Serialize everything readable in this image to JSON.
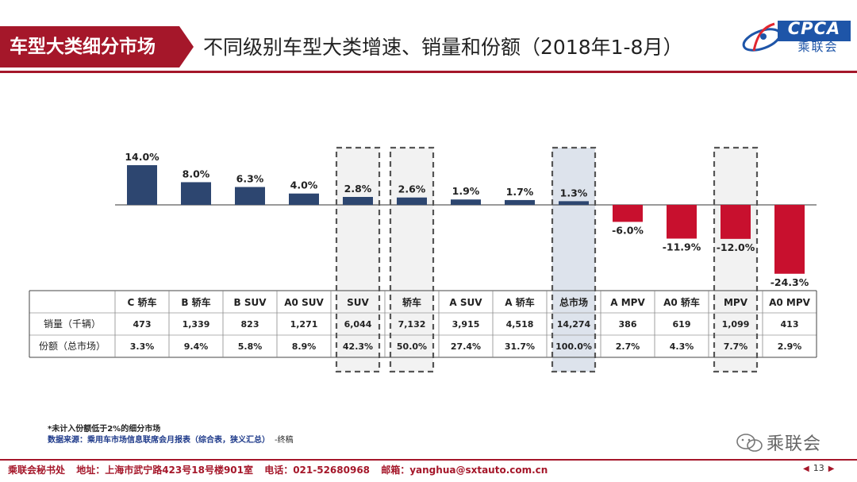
{
  "header": {
    "section_tag": "车型大类细分市场",
    "title": "不同级别车型大类增速、销量和份额（2018年1-8月）",
    "logo_text": "CPCA",
    "logo_subtext": "乘联会"
  },
  "chart_data": {
    "type": "bar",
    "categories": [
      "C 轿车",
      "B 轿车",
      "B SUV",
      "A0 SUV",
      "SUV",
      "轿车",
      "A SUV",
      "A 轿车",
      "总市场",
      "A MPV",
      "A0 轿车",
      "MPV",
      "A0 MPV"
    ],
    "values": [
      14.0,
      8.0,
      6.3,
      4.0,
      2.8,
      2.6,
      1.9,
      1.7,
      1.3,
      -6.0,
      -11.9,
      -12.0,
      -24.3
    ],
    "value_labels": [
      "14.0%",
      "8.0%",
      "6.3%",
      "4.0%",
      "2.8%",
      "2.6%",
      "1.9%",
      "1.7%",
      "1.3%",
      "-6.0%",
      "-11.9%",
      "-12.0%",
      "-24.3%"
    ],
    "highlighted": [
      "SUV",
      "轿车",
      "总市场",
      "MPV"
    ],
    "shaded": [
      "总市场"
    ],
    "colors": {
      "positive": "#2d4670",
      "negative": "#c8102e",
      "highlight_fill": "#f2f2f2",
      "shaded_fill": "#dde3ec"
    }
  },
  "table": {
    "rows": [
      {
        "label": "销量（千辆）",
        "values": [
          "473",
          "1,339",
          "823",
          "1,271",
          "6,044",
          "7,132",
          "3,915",
          "4,518",
          "14,274",
          "386",
          "619",
          "1,099",
          "413"
        ]
      },
      {
        "label": "份额（总市场）",
        "values": [
          "3.3%",
          "9.4%",
          "5.8%",
          "8.9%",
          "42.3%",
          "50.0%",
          "27.4%",
          "31.7%",
          "100.0%",
          "2.7%",
          "4.3%",
          "7.7%",
          "2.9%"
        ]
      }
    ]
  },
  "notes": {
    "note1": "*未计入份额低于2%的细分市场",
    "source": "数据来源：乘用车市场信息联席会月报表（综合表，狭义汇总）",
    "source_end": "-终稿"
  },
  "watermark": "乘联会",
  "footer": {
    "org": "乘联会秘书处",
    "address": "地址：上海市武宁路423号18号楼901室",
    "phone": "电话：021-52680968",
    "email": "邮箱：yanghua@sxtauto.com.cn",
    "page": "13"
  }
}
